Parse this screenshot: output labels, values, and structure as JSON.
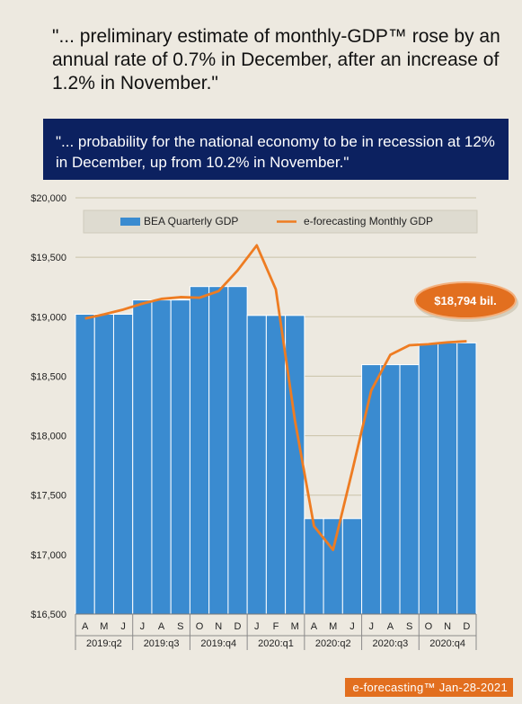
{
  "quote_top": "\"... preliminary estimate of monthly-GDP™ rose by an annual rate of 0.7% in December, after an increase of 1.2% in November.\"",
  "quote_banner": "\"... probability for the national economy to be in recession at 12% in December, up from 10.2% in November.\"",
  "callout": "$18,794 bil.",
  "footer": "e-forecasting™ Jan-28-2021",
  "colors": {
    "bar": "#3a8bd0",
    "line": "#ee7c22",
    "banner": "#0c2160",
    "callout": "#e26f1f"
  },
  "chart_data": {
    "type": "bar",
    "ylim": [
      16500,
      20000
    ],
    "yticks": [
      "$16,500",
      "$17,000",
      "$17,500",
      "$18,000",
      "$18,500",
      "$19,000",
      "$19,500",
      "$20,000"
    ],
    "ytick_values": [
      16500,
      17000,
      17500,
      18000,
      18500,
      19000,
      19500,
      20000
    ],
    "months": [
      "A",
      "M",
      "J",
      "J",
      "A",
      "S",
      "O",
      "N",
      "D",
      "J",
      "F",
      "M",
      "A",
      "M",
      "J",
      "J",
      "A",
      "S",
      "O",
      "N",
      "D"
    ],
    "quarters": [
      "2019:q2",
      "2019:q3",
      "2019:q4",
      "2020:q1",
      "2020:q2",
      "2020:q3",
      "2020:q4"
    ],
    "legend_placement": "top",
    "series": [
      {
        "name": "BEA Quarterly GDP",
        "kind": "bar",
        "values": [
          19021,
          19021,
          19021,
          19141,
          19141,
          19141,
          19254,
          19254,
          19254,
          19011,
          19011,
          19011,
          17303,
          17303,
          17303,
          18597,
          18597,
          18597,
          18780,
          18780,
          18780
        ]
      },
      {
        "name": "e-forecasting Monthly GDP",
        "kind": "line",
        "values": [
          18985,
          19020,
          19060,
          19110,
          19150,
          19165,
          19160,
          19215,
          19390,
          19600,
          19230,
          18130,
          17240,
          17040,
          17700,
          18380,
          18680,
          18760,
          18770,
          18785,
          18794
        ]
      }
    ]
  }
}
